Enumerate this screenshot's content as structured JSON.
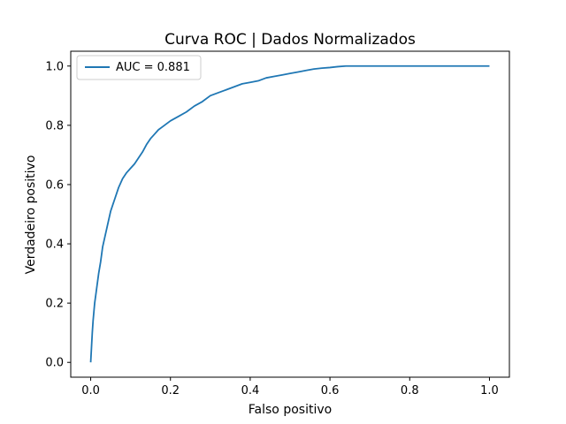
{
  "chart_data": {
    "type": "line",
    "title": "Curva ROC | Dados Normalizados",
    "xlabel": "Falso positivo",
    "ylabel": "Verdadeiro positivo",
    "xlim": [
      -0.05,
      1.05
    ],
    "ylim": [
      -0.05,
      1.05
    ],
    "xticks": [
      0.0,
      0.2,
      0.4,
      0.6,
      0.8,
      1.0
    ],
    "yticks": [
      0.0,
      0.2,
      0.4,
      0.6,
      0.8,
      1.0
    ],
    "xtick_labels": [
      "0.0",
      "0.2",
      "0.4",
      "0.6",
      "0.8",
      "1.0"
    ],
    "ytick_labels": [
      "0.0",
      "0.2",
      "0.4",
      "0.6",
      "0.8",
      "1.0"
    ],
    "grid": false,
    "legend_position": "top-left",
    "series": [
      {
        "name": "AUC = 0.881",
        "color": "#1f77b4",
        "x": [
          0.0,
          0.002,
          0.004,
          0.006,
          0.008,
          0.01,
          0.013,
          0.016,
          0.02,
          0.025,
          0.03,
          0.04,
          0.05,
          0.06,
          0.07,
          0.08,
          0.09,
          0.1,
          0.11,
          0.12,
          0.13,
          0.14,
          0.15,
          0.16,
          0.17,
          0.18,
          0.19,
          0.2,
          0.22,
          0.24,
          0.26,
          0.28,
          0.3,
          0.32,
          0.34,
          0.36,
          0.38,
          0.4,
          0.42,
          0.44,
          0.46,
          0.48,
          0.5,
          0.52,
          0.54,
          0.56,
          0.58,
          0.6,
          0.62,
          0.64,
          0.7,
          0.8,
          0.9,
          1.0
        ],
        "y": [
          0.0,
          0.05,
          0.1,
          0.14,
          0.17,
          0.2,
          0.23,
          0.26,
          0.3,
          0.34,
          0.39,
          0.45,
          0.51,
          0.55,
          0.59,
          0.62,
          0.64,
          0.655,
          0.67,
          0.69,
          0.71,
          0.735,
          0.755,
          0.77,
          0.785,
          0.795,
          0.805,
          0.815,
          0.83,
          0.845,
          0.865,
          0.88,
          0.9,
          0.91,
          0.92,
          0.93,
          0.94,
          0.945,
          0.95,
          0.96,
          0.965,
          0.97,
          0.975,
          0.98,
          0.985,
          0.99,
          0.993,
          0.995,
          0.998,
          1.0,
          1.0,
          1.0,
          1.0,
          1.0
        ]
      }
    ]
  }
}
